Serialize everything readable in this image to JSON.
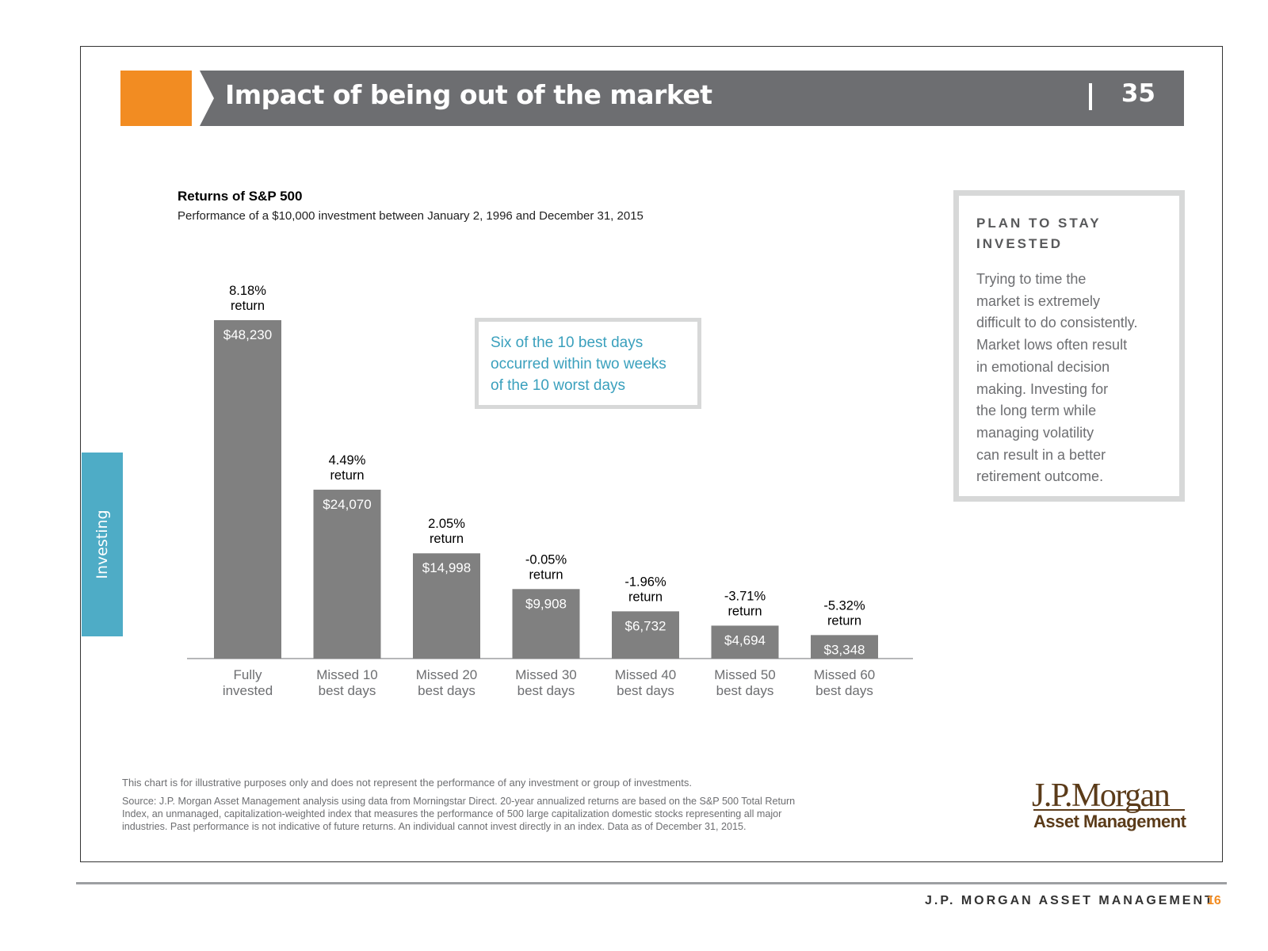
{
  "banner": {
    "title": "Impact of being out of the market",
    "page_number": "35"
  },
  "side_tab": {
    "label": "Investing"
  },
  "chart_header": {
    "title": "Returns of S&P 500",
    "subtitle": "Performance of a $10,000 investment between January 2, 1996 and December 31, 2015"
  },
  "callout": {
    "lines": [
      "Six of the 10 best days",
      "occurred within two weeks",
      "of the 10 worst days"
    ]
  },
  "sidebox": {
    "heading_lines": [
      "PLAN TO STAY",
      "INVESTED"
    ],
    "body_lines": [
      "Trying to time the",
      "market is extremely",
      "difficult to do consistently.",
      "Market lows often result",
      "in emotional decision",
      "making. Investing for",
      "the long term while",
      "managing volatility",
      "can result in a better",
      "retirement outcome."
    ]
  },
  "notes": {
    "disclaimer": "This chart is for illustrative purposes only and does not represent the performance of any investment or group of investments.",
    "source_lines": [
      "Source: J.P. Morgan Asset Management analysis using data from Morningstar Direct. 20-year annualized returns are based on the S&P 500 Total Return",
      "Index, an unmanaged, capitalization-weighted index that measures the performance of 500 large capitalization domestic stocks representing all major",
      "industries. Past performance is not indicative of future returns. An individual cannot invest directly in an index. Data as of December 31, 2015."
    ]
  },
  "logo": {
    "name": "J.P.Morgan",
    "sub": "Asset Management"
  },
  "footer": {
    "text": "J.P. MORGAN ASSET MANAGEMENT",
    "page": "16"
  },
  "colors": {
    "orange": "#f28c22",
    "banner_gray": "#6d6e71",
    "bar": "#808080",
    "teal": "#4eacc6",
    "brown": "#5b3b19"
  },
  "chart_data": {
    "type": "bar",
    "title": "Returns of S&P 500",
    "subtitle": "Performance of a $10,000 investment between January 2, 1996 and December 31, 2015",
    "categories": [
      [
        "Fully",
        "invested"
      ],
      [
        "Missed 10",
        "best days"
      ],
      [
        "Missed 20",
        "best days"
      ],
      [
        "Missed 30",
        "best days"
      ],
      [
        "Missed 40",
        "best days"
      ],
      [
        "Missed 50",
        "best days"
      ],
      [
        "Missed 60",
        "best days"
      ]
    ],
    "values": [
      48230,
      24070,
      14998,
      9908,
      6732,
      4694,
      3348
    ],
    "value_labels": [
      "$48,230",
      "$24,070",
      "$14,998",
      "$9,908",
      "$6,732",
      "$4,694",
      "$3,348"
    ],
    "return_labels": [
      "8.18%",
      "4.49%",
      "2.05%",
      "-0.05%",
      "-1.96%",
      "-3.71%",
      "-5.32%"
    ],
    "return_suffix": "return",
    "ylim": [
      0,
      48230
    ],
    "grid": false,
    "legend": "none"
  }
}
